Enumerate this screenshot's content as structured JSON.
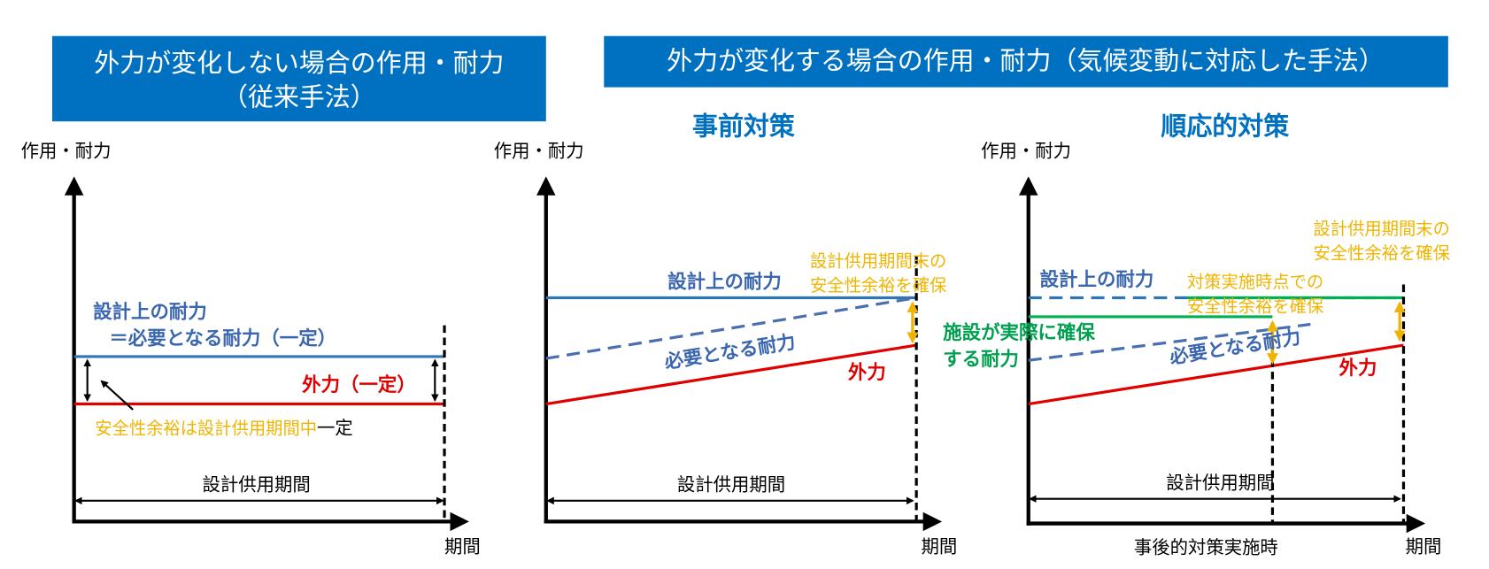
{
  "header_left": {
    "lines": [
      "外力が変化しない場合の作用・耐力",
      "（従来手法）"
    ]
  },
  "header_right": "外力が変化する場合の作用・耐力（気候変動に対応した手法）",
  "panels": [
    {
      "y_label": "作用・耐力",
      "x_label": "期間",
      "period": "設計供用期間",
      "labels": {
        "design": "設計上の耐力",
        "required": "＝必要となる耐力（一定）",
        "force": "外力（一定）",
        "margin": "安全性余裕は設計供用期間中",
        "constant": "一定"
      }
    },
    {
      "title": "事前対策",
      "y_label": "作用・耐力",
      "x_label": "期間",
      "period": "設計供用期間",
      "labels": {
        "design": "設計上の耐力",
        "end_margin": [
          "設計供用期間末の",
          "安全性余裕を確保"
        ],
        "required": "必要となる耐力",
        "force": "外力"
      }
    },
    {
      "title": "順応的対策",
      "y_label": "作用・耐力",
      "x_label": "期間",
      "period": "設計供用期間",
      "labels": {
        "design": "設計上の耐力",
        "action_margin": [
          "対策実施時点での",
          "安全性余裕を確保"
        ],
        "end_margin": [
          "設計供用期間末の",
          "安全性余裕を確保"
        ],
        "actual": [
          "施設が実際に確保",
          "する耐力"
        ],
        "required": "必要となる耐力",
        "force": "外力",
        "action_time": "事後的対策実施時"
      }
    }
  ]
}
